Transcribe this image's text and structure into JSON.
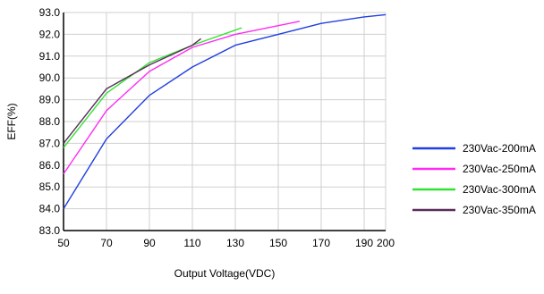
{
  "chart_data": {
    "type": "line",
    "xlabel": "Output Voltage(VDC)",
    "ylabel": "EFF(%)",
    "xlim": [
      50,
      200
    ],
    "ylim": [
      83.0,
      93.0
    ],
    "x_ticks": [
      "50",
      "70",
      "90",
      "110",
      "130",
      "150",
      "170",
      "190",
      "200"
    ],
    "x_tick_values": [
      50,
      70,
      90,
      110,
      130,
      150,
      170,
      190,
      200
    ],
    "y_ticks": [
      "83.0",
      "84.0",
      "85.0",
      "86.0",
      "87.0",
      "88.0",
      "89.0",
      "90.0",
      "91.0",
      "92.0",
      "93.0"
    ],
    "y_tick_values": [
      83,
      84,
      85,
      86,
      87,
      88,
      89,
      90,
      91,
      92,
      93
    ],
    "grid": {
      "x": true,
      "y": true
    },
    "legend_position": "right",
    "series": [
      {
        "name": "230Vac-200mA",
        "color": "#1f3fe0",
        "x": [
          50,
          70,
          90,
          110,
          130,
          150,
          170,
          190,
          200
        ],
        "y": [
          84.0,
          87.2,
          89.2,
          90.5,
          91.5,
          92.0,
          92.5,
          92.8,
          92.9
        ]
      },
      {
        "name": "230Vac-250mA",
        "color": "#ff2cf0",
        "x": [
          50,
          70,
          90,
          110,
          130,
          160
        ],
        "y": [
          85.6,
          88.5,
          90.3,
          91.4,
          92.0,
          92.6
        ]
      },
      {
        "name": "230Vac-300mA",
        "color": "#33e233",
        "x": [
          50,
          70,
          90,
          110,
          133
        ],
        "y": [
          86.8,
          89.3,
          90.7,
          91.5,
          92.3
        ]
      },
      {
        "name": "230Vac-350mA",
        "color": "#5a2a5a",
        "x": [
          50,
          70,
          90,
          110,
          114
        ],
        "y": [
          87.0,
          89.5,
          90.6,
          91.5,
          91.8
        ]
      }
    ]
  }
}
